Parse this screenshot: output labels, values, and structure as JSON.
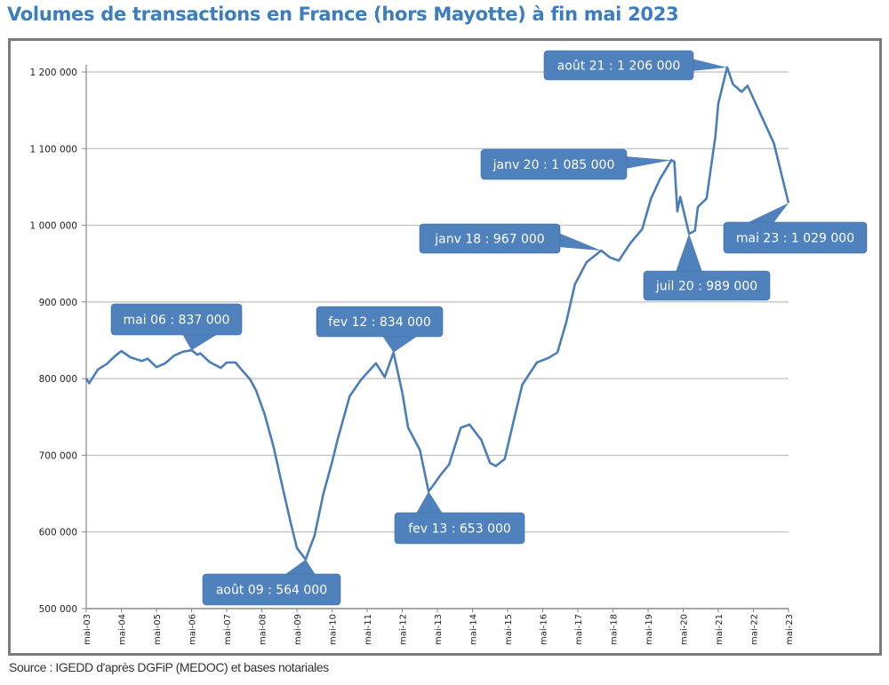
{
  "title": "Volumes de transactions en France (hors Mayotte) à fin mai 2023",
  "source": "Source : IGEDD d'après DGFiP (MEDOC) et bases notariales",
  "colors": {
    "title": "#3b7dbf",
    "line": "#4a7ebb",
    "annotation_fill": "#4f81bd",
    "grid": "#bfbfbf",
    "frame": "#7b7b7b"
  },
  "chart_data": {
    "type": "line",
    "title": "Volumes de transactions en France (hors Mayotte) à fin mai 2023",
    "xlabel": "",
    "ylabel": "",
    "ylim": [
      500000,
      1200000
    ],
    "xlim": [
      "2003-05",
      "2023-05"
    ],
    "grid": "horizontal",
    "legend": "none",
    "y_ticks": [
      "500 000",
      "600 000",
      "700 000",
      "800 000",
      "900 000",
      "1 000 000",
      "1 100 000",
      "1 200 000"
    ],
    "y_tick_values": [
      500000,
      600000,
      700000,
      800000,
      900000,
      1000000,
      1100000,
      1200000
    ],
    "x_ticks": [
      "mai-03",
      "mai-04",
      "mai-05",
      "mai-06",
      "mai-07",
      "mai-08",
      "mai-09",
      "mai-10",
      "mai-11",
      "mai-12",
      "mai-13",
      "mai-14",
      "mai-15",
      "mai-16",
      "mai-17",
      "mai-18",
      "mai-19",
      "mai-20",
      "mai-21",
      "mai-22",
      "mai-23"
    ],
    "series": [
      {
        "points": [
          [
            "2003-05",
            800000
          ],
          [
            "2003-06",
            794000
          ],
          [
            "2003-07",
            800000
          ],
          [
            "2003-09",
            812000
          ],
          [
            "2003-12",
            819000
          ],
          [
            "2004-03",
            830000
          ],
          [
            "2004-05",
            836000
          ],
          [
            "2004-08",
            828000
          ],
          [
            "2004-12",
            823000
          ],
          [
            "2005-02",
            826000
          ],
          [
            "2005-05",
            815000
          ],
          [
            "2005-08",
            820000
          ],
          [
            "2005-11",
            830000
          ],
          [
            "2006-02",
            835000
          ],
          [
            "2006-05",
            837000
          ],
          [
            "2006-07",
            831000
          ],
          [
            "2006-08",
            833000
          ],
          [
            "2006-11",
            822000
          ],
          [
            "2007-03",
            814000
          ],
          [
            "2007-05",
            821000
          ],
          [
            "2007-08",
            821000
          ],
          [
            "2007-10",
            812000
          ],
          [
            "2008-01",
            799000
          ],
          [
            "2008-03",
            785000
          ],
          [
            "2008-06",
            753000
          ],
          [
            "2008-09",
            711000
          ],
          [
            "2008-12",
            660000
          ],
          [
            "2009-03",
            610000
          ],
          [
            "2009-05",
            579000
          ],
          [
            "2009-08",
            564000
          ],
          [
            "2009-09",
            575000
          ],
          [
            "2009-11",
            595000
          ],
          [
            "2010-02",
            649000
          ],
          [
            "2010-05",
            691000
          ],
          [
            "2010-07",
            722000
          ],
          [
            "2010-11",
            777000
          ],
          [
            "2011-03",
            799000
          ],
          [
            "2011-08",
            820000
          ],
          [
            "2011-11",
            802000
          ],
          [
            "2012-02",
            834000
          ],
          [
            "2012-05",
            782000
          ],
          [
            "2012-07",
            736000
          ],
          [
            "2012-11",
            707000
          ],
          [
            "2013-02",
            653000
          ],
          [
            "2013-04",
            663000
          ],
          [
            "2013-06",
            674000
          ],
          [
            "2013-09",
            688000
          ],
          [
            "2014-01",
            736000
          ],
          [
            "2014-04",
            740000
          ],
          [
            "2014-08",
            720000
          ],
          [
            "2014-11",
            690000
          ],
          [
            "2015-01",
            686000
          ],
          [
            "2015-04",
            695000
          ],
          [
            "2015-07",
            744000
          ],
          [
            "2015-10",
            792000
          ],
          [
            "2016-03",
            821000
          ],
          [
            "2016-07",
            827000
          ],
          [
            "2016-10",
            834000
          ],
          [
            "2017-01",
            873000
          ],
          [
            "2017-04",
            923000
          ],
          [
            "2017-08",
            952000
          ],
          [
            "2018-01",
            967000
          ],
          [
            "2018-04",
            958000
          ],
          [
            "2018-07",
            954000
          ],
          [
            "2018-11",
            977000
          ],
          [
            "2019-03",
            995000
          ],
          [
            "2019-06",
            1035000
          ],
          [
            "2019-09",
            1060000
          ],
          [
            "2020-01",
            1085000
          ],
          [
            "2020-02",
            1083000
          ],
          [
            "2020-03",
            1018000
          ],
          [
            "2020-04",
            1037000
          ],
          [
            "2020-07",
            989000
          ],
          [
            "2020-09",
            993000
          ],
          [
            "2020-10",
            1024000
          ],
          [
            "2021-01",
            1035000
          ],
          [
            "2021-04",
            1116000
          ],
          [
            "2021-05",
            1159000
          ],
          [
            "2021-08",
            1206000
          ],
          [
            "2021-10",
            1184000
          ],
          [
            "2022-01",
            1174000
          ],
          [
            "2022-03",
            1182000
          ],
          [
            "2022-06",
            1157000
          ],
          [
            "2022-09",
            1132000
          ],
          [
            "2022-12",
            1107000
          ],
          [
            "2023-05",
            1029000
          ]
        ]
      }
    ],
    "annotations": [
      {
        "text": "mai 06 : 837 000",
        "date": "2006-05",
        "value": 837000
      },
      {
        "text": "août 09 : 564 000",
        "date": "2009-08",
        "value": 564000
      },
      {
        "text": "fev 12 : 834 000",
        "date": "2012-02",
        "value": 834000
      },
      {
        "text": "fev 13 : 653 000",
        "date": "2013-02",
        "value": 653000
      },
      {
        "text": "janv  18 : 967 000",
        "date": "2018-01",
        "value": 967000
      },
      {
        "text": "janv 20 : 1 085 000",
        "date": "2020-01",
        "value": 1085000
      },
      {
        "text": "juil 20 : 989 000",
        "date": "2020-07",
        "value": 989000
      },
      {
        "text": "août 21 : 1 206 000",
        "date": "2021-08",
        "value": 1206000
      },
      {
        "text": "mai 23 : 1 029 000",
        "date": "2023-05",
        "value": 1029000
      }
    ]
  }
}
